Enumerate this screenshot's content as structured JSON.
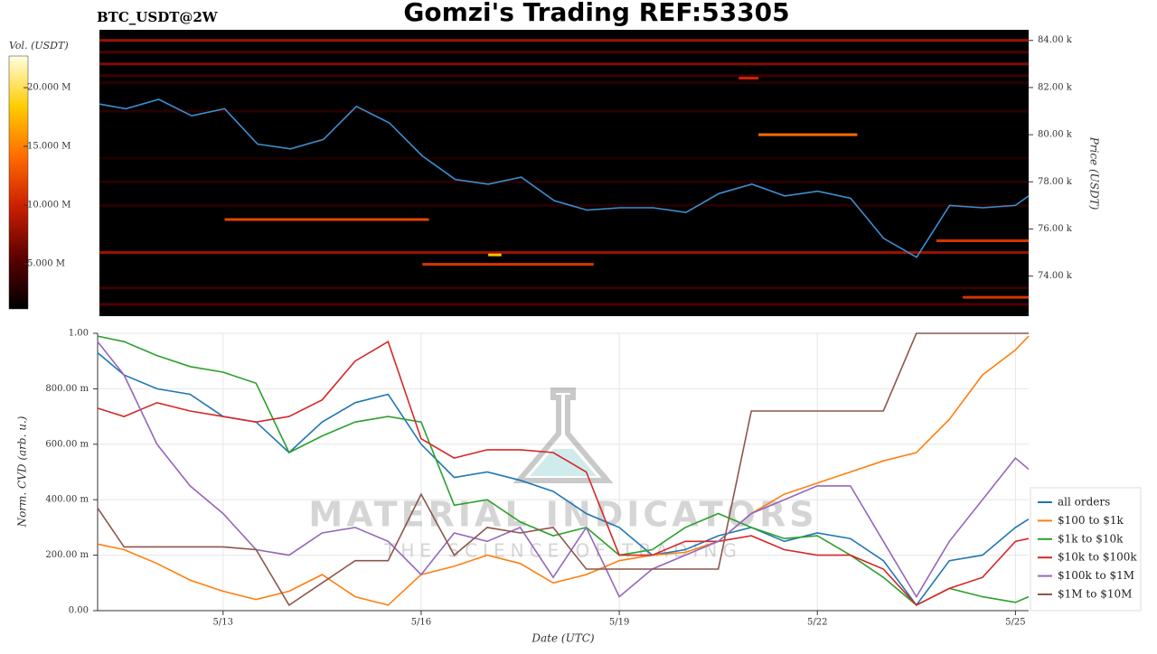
{
  "chart_data": [
    {
      "type": "heatmap",
      "title": "Gomzi's Trading REF:53305",
      "subtitle": "BTC_USDT@2W",
      "y_label": "Price (USDT)",
      "colorbar_label": "Vol. (USDT)",
      "xlim": [
        11.1,
        25.2
      ],
      "ylim": [
        72300,
        84450
      ],
      "yticks": [
        {
          "value": 74000,
          "label": "74.00 k"
        },
        {
          "value": 76000,
          "label": "76.00 k"
        },
        {
          "value": 78000,
          "label": "78.00 k"
        },
        {
          "value": 80000,
          "label": "80.00 k"
        },
        {
          "value": 82000,
          "label": "82.00 k"
        },
        {
          "value": 84000,
          "label": "84.00 k"
        }
      ],
      "colorscale": [
        "#000000",
        "#5a0000",
        "#c81e00",
        "#ff6a00",
        "#ffcc00",
        "#ffffe0"
      ],
      "vlim": [
        1150000,
        22700000
      ],
      "vticks": [
        {
          "value": 5000000,
          "label": "5.000 M"
        },
        {
          "value": 10000000,
          "label": "10.000 M"
        },
        {
          "value": 15000000,
          "label": "15.000 M"
        },
        {
          "value": 20000000,
          "label": "20.000 M"
        }
      ],
      "bands": [
        {
          "price": 84000,
          "x0": 11.1,
          "x1": 25.2,
          "volume": 8000000
        },
        {
          "price": 83500,
          "x0": 11.1,
          "x1": 25.2,
          "volume": 5000000
        },
        {
          "price": 83000,
          "x0": 11.1,
          "x1": 25.2,
          "volume": 7000000
        },
        {
          "price": 82500,
          "x0": 11.1,
          "x1": 25.2,
          "volume": 4000000
        },
        {
          "price": 82200,
          "x0": 11.1,
          "x1": 25.2,
          "volume": 3000000
        },
        {
          "price": 81000,
          "x0": 11.1,
          "x1": 25.2,
          "volume": 3000000
        },
        {
          "price": 79000,
          "x0": 11.1,
          "x1": 25.2,
          "volume": 2500000
        },
        {
          "price": 78000,
          "x0": 11.1,
          "x1": 25.2,
          "volume": 3000000
        },
        {
          "price": 77000,
          "x0": 11.1,
          "x1": 25.2,
          "volume": 3000000
        },
        {
          "price": 75000,
          "x0": 11.1,
          "x1": 25.2,
          "volume": 8000000
        },
        {
          "price": 73500,
          "x0": 11.1,
          "x1": 25.2,
          "volume": 4000000
        },
        {
          "price": 72800,
          "x0": 11.1,
          "x1": 25.2,
          "volume": 5000000
        },
        {
          "price": 76400,
          "x0": 13.0,
          "x1": 16.1,
          "volume": 12000000
        },
        {
          "price": 74500,
          "x0": 16.0,
          "x1": 18.6,
          "volume": 11000000
        },
        {
          "price": 74900,
          "x0": 17.0,
          "x1": 17.2,
          "volume": 18000000
        },
        {
          "price": 80000,
          "x0": 21.1,
          "x1": 22.6,
          "volume": 14000000
        },
        {
          "price": 82400,
          "x0": 20.8,
          "x1": 21.1,
          "volume": 10000000
        },
        {
          "price": 75500,
          "x0": 23.8,
          "x1": 25.2,
          "volume": 11000000
        },
        {
          "price": 73100,
          "x0": 24.2,
          "x1": 25.2,
          "volume": 11000000
        }
      ],
      "x": [
        11.1,
        11.5,
        12,
        12.5,
        13,
        13.5,
        14,
        14.5,
        15,
        15.5,
        16,
        16.5,
        17,
        17.5,
        18,
        18.5,
        19,
        19.5,
        20,
        20.5,
        21,
        21.5,
        22,
        22.5,
        23,
        23.5,
        24,
        24.5,
        25,
        25.2
      ],
      "values": [
        81300,
        81100,
        81500,
        80800,
        81100,
        79600,
        79400,
        79800,
        81200,
        80500,
        79100,
        78100,
        77900,
        78200,
        77200,
        76800,
        76900,
        76900,
        76700,
        77500,
        77900,
        77400,
        77600,
        77300,
        75600,
        74800,
        77000,
        76900,
        77000,
        77400
      ],
      "color": "#3a8fd0"
    },
    {
      "type": "line",
      "x_label": "Date (UTC)",
      "y_label": "Norm. CVD (arb. u.)",
      "annotations": [
        "MATERIAL INDICATORS",
        "THE SCIENCE OF TRADING"
      ],
      "xlim": [
        11.1,
        25.2
      ],
      "xticks": [
        {
          "value": 13,
          "label": "5/13"
        },
        {
          "value": 16,
          "label": "5/16"
        },
        {
          "value": 19,
          "label": "5/19"
        },
        {
          "value": 22,
          "label": "5/22"
        },
        {
          "value": 25,
          "label": "5/25"
        }
      ],
      "ylim": [
        0,
        1
      ],
      "yticks": [
        {
          "value": 0,
          "label": "0.00"
        },
        {
          "value": 0.2,
          "label": "200.00 m"
        },
        {
          "value": 0.4,
          "label": "400.00 m"
        },
        {
          "value": 0.6,
          "label": "600.00 m"
        },
        {
          "value": 0.8,
          "label": "800.00 m"
        },
        {
          "value": 1,
          "label": "1.00"
        }
      ],
      "grid": true,
      "legend": "lower right",
      "x": [
        11.1,
        11.5,
        12,
        12.5,
        13,
        13.5,
        14,
        14.5,
        15,
        15.5,
        16,
        16.5,
        17,
        17.5,
        18,
        18.5,
        19,
        19.5,
        20,
        20.5,
        21,
        21.5,
        22,
        22.5,
        23,
        23.5,
        24,
        24.5,
        25,
        25.2
      ],
      "series": [
        {
          "name": "all orders",
          "color": "#1f77b4",
          "values": [
            0.93,
            0.85,
            0.8,
            0.78,
            0.7,
            0.68,
            0.57,
            0.68,
            0.75,
            0.78,
            0.6,
            0.48,
            0.5,
            0.47,
            0.43,
            0.35,
            0.3,
            0.2,
            0.22,
            0.27,
            0.3,
            0.25,
            0.28,
            0.26,
            0.18,
            0.02,
            0.18,
            0.2,
            0.3,
            0.33
          ]
        },
        {
          "name": "$100 to $1k",
          "color": "#ff7f0e",
          "values": [
            0.24,
            0.22,
            0.17,
            0.11,
            0.07,
            0.04,
            0.07,
            0.13,
            0.05,
            0.02,
            0.13,
            0.16,
            0.2,
            0.17,
            0.1,
            0.13,
            0.18,
            0.2,
            0.21,
            0.25,
            0.35,
            0.42,
            0.46,
            0.5,
            0.54,
            0.57,
            0.69,
            0.85,
            0.94,
            0.99
          ]
        },
        {
          "name": "$1k to $10k",
          "color": "#2ca02c",
          "values": [
            0.99,
            0.97,
            0.92,
            0.88,
            0.86,
            0.82,
            0.57,
            0.63,
            0.68,
            0.7,
            0.68,
            0.38,
            0.4,
            0.32,
            0.27,
            0.3,
            0.2,
            0.22,
            0.3,
            0.35,
            0.3,
            0.26,
            0.27,
            0.2,
            0.12,
            0.02,
            0.08,
            0.05,
            0.03,
            0.05
          ]
        },
        {
          "name": "$10k to $100k",
          "color": "#d62728",
          "values": [
            0.73,
            0.7,
            0.75,
            0.72,
            0.7,
            0.68,
            0.7,
            0.76,
            0.9,
            0.97,
            0.62,
            0.55,
            0.58,
            0.58,
            0.57,
            0.5,
            0.2,
            0.2,
            0.25,
            0.25,
            0.27,
            0.22,
            0.2,
            0.2,
            0.15,
            0.02,
            0.08,
            0.12,
            0.25,
            0.26
          ]
        },
        {
          "name": "$100k to $1M",
          "color": "#9467bd",
          "values": [
            0.97,
            0.85,
            0.6,
            0.45,
            0.35,
            0.22,
            0.2,
            0.28,
            0.3,
            0.25,
            0.13,
            0.28,
            0.25,
            0.3,
            0.12,
            0.3,
            0.05,
            0.15,
            0.2,
            0.25,
            0.35,
            0.4,
            0.45,
            0.45,
            0.25,
            0.05,
            0.25,
            0.4,
            0.55,
            0.51
          ]
        },
        {
          "name": "$1M to $10M",
          "color": "#8c564b",
          "values": [
            0.37,
            0.23,
            0.23,
            0.23,
            0.23,
            0.22,
            0.02,
            0.1,
            0.18,
            0.18,
            0.42,
            0.2,
            0.3,
            0.28,
            0.3,
            0.15,
            0.15,
            0.15,
            0.15,
            0.15,
            0.72,
            0.72,
            0.72,
            0.72,
            0.72,
            1,
            1,
            1,
            1,
            1
          ]
        }
      ]
    }
  ]
}
